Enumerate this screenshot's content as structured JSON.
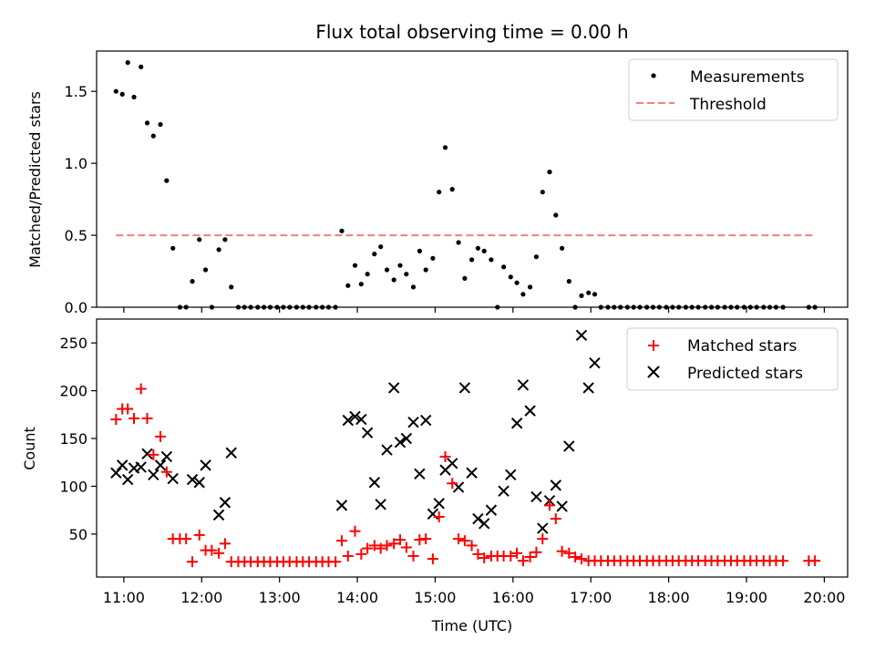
{
  "figure": {
    "title": "Flux total observing time = 0.00 h",
    "x_label": "Time (UTC)"
  },
  "chart_data": [
    {
      "type": "scatter",
      "ylabel": "Matched/Predicted stars",
      "ylim": [
        0,
        1.78
      ],
      "xlim": [
        10.65,
        20.3
      ],
      "yticks": [
        0.0,
        0.5,
        1.0,
        1.5
      ],
      "ytick_labels": [
        "0.0",
        "0.5",
        "1.0",
        "1.5"
      ],
      "legend_position": "top-right",
      "legend": [
        {
          "key": "measurements",
          "label": "Measurements"
        },
        {
          "key": "threshold",
          "label": "Threshold"
        }
      ],
      "threshold": {
        "value": 0.5,
        "x_start": 10.9,
        "x_end": 19.85,
        "color": "#f08080"
      },
      "series": [
        {
          "name": "Measurements",
          "color": "#000000",
          "x": [
            10.9,
            10.98,
            11.05,
            11.13,
            11.22,
            11.3,
            11.38,
            11.47,
            11.55,
            11.63,
            11.72,
            11.8,
            11.88,
            11.97,
            12.05,
            12.13,
            12.22,
            12.3,
            12.38,
            12.47,
            12.55,
            12.63,
            12.72,
            12.8,
            12.88,
            12.97,
            13.05,
            13.13,
            13.22,
            13.3,
            13.38,
            13.47,
            13.55,
            13.63,
            13.72,
            13.8,
            13.88,
            13.97,
            14.05,
            14.13,
            14.22,
            14.3,
            14.38,
            14.47,
            14.55,
            14.63,
            14.72,
            14.8,
            14.88,
            14.97,
            15.05,
            15.13,
            15.22,
            15.3,
            15.38,
            15.47,
            15.55,
            15.63,
            15.72,
            15.8,
            15.88,
            15.97,
            16.05,
            16.13,
            16.22,
            16.3,
            16.38,
            16.47,
            16.55,
            16.63,
            16.72,
            16.8,
            16.88,
            16.97,
            17.05,
            17.13,
            17.22,
            17.3,
            17.38,
            17.47,
            17.55,
            17.63,
            17.72,
            17.8,
            17.88,
            17.97,
            18.05,
            18.13,
            18.22,
            18.3,
            18.38,
            18.47,
            18.55,
            18.63,
            18.72,
            18.8,
            18.88,
            18.97,
            19.05,
            19.13,
            19.22,
            19.3,
            19.38,
            19.47,
            19.8,
            19.88
          ],
          "y": [
            1.5,
            1.48,
            1.7,
            1.46,
            1.67,
            1.28,
            1.19,
            1.27,
            0.88,
            0.41,
            0.0,
            0.0,
            0.18,
            0.47,
            0.26,
            0.0,
            0.4,
            0.47,
            0.14,
            0.0,
            0.0,
            0.0,
            0.0,
            0.0,
            0.0,
            0.0,
            0.0,
            0.0,
            0.0,
            0.0,
            0.0,
            0.0,
            0.0,
            0.0,
            0.0,
            0.53,
            0.15,
            0.29,
            0.16,
            0.23,
            0.37,
            0.42,
            0.26,
            0.19,
            0.29,
            0.23,
            0.14,
            0.39,
            0.26,
            0.34,
            0.8,
            1.11,
            0.82,
            0.45,
            0.2,
            0.33,
            0.41,
            0.39,
            0.33,
            0.0,
            0.28,
            0.21,
            0.17,
            0.09,
            0.14,
            0.35,
            0.8,
            0.94,
            0.64,
            0.41,
            0.18,
            0.0,
            0.08,
            0.1,
            0.09,
            0.0,
            0.0,
            0.0,
            0.0,
            0.0,
            0.0,
            0.0,
            0.0,
            0.0,
            0.0,
            0.0,
            0.0,
            0.0,
            0.0,
            0.0,
            0.0,
            0.0,
            0.0,
            0.0,
            0.0,
            0.0,
            0.0,
            0.0,
            0.0,
            0.0,
            0.0,
            0.0,
            0.0,
            0.0,
            0.0,
            0.0
          ]
        }
      ]
    },
    {
      "type": "scatter",
      "ylabel": "Count",
      "xlabel": "Time (UTC)",
      "ylim": [
        5,
        275
      ],
      "xlim": [
        10.65,
        20.3
      ],
      "yticks": [
        50,
        100,
        150,
        200,
        250
      ],
      "ytick_labels": [
        "50",
        "100",
        "150",
        "200",
        "250"
      ],
      "xticks": [
        11,
        12,
        13,
        14,
        15,
        16,
        17,
        18,
        19,
        20
      ],
      "xtick_labels": [
        "11:00",
        "12:00",
        "13:00",
        "14:00",
        "15:00",
        "16:00",
        "17:00",
        "18:00",
        "19:00",
        "20:00"
      ],
      "legend_position": "top-right",
      "legend": [
        {
          "key": "matched",
          "label": "Matched stars"
        },
        {
          "key": "predicted",
          "label": "Predicted stars"
        }
      ],
      "series": [
        {
          "name": "Matched stars",
          "marker": "plus",
          "color": "#ff0000",
          "x": [
            10.9,
            10.98,
            11.05,
            11.13,
            11.22,
            11.3,
            11.38,
            11.47,
            11.55,
            11.63,
            11.72,
            11.8,
            11.88,
            11.97,
            12.05,
            12.13,
            12.22,
            12.3,
            12.38,
            12.47,
            12.55,
            12.63,
            12.72,
            12.8,
            12.88,
            12.97,
            13.05,
            13.13,
            13.22,
            13.3,
            13.38,
            13.47,
            13.55,
            13.63,
            13.72,
            13.8,
            13.88,
            13.97,
            14.05,
            14.13,
            14.22,
            14.3,
            14.38,
            14.47,
            14.55,
            14.63,
            14.72,
            14.8,
            14.88,
            14.97,
            15.05,
            15.13,
            15.22,
            15.3,
            15.38,
            15.47,
            15.55,
            15.63,
            15.72,
            15.8,
            15.88,
            15.97,
            16.05,
            16.13,
            16.22,
            16.3,
            16.38,
            16.47,
            16.55,
            16.63,
            16.72,
            16.8,
            16.88,
            16.97,
            17.05,
            17.13,
            17.22,
            17.3,
            17.38,
            17.47,
            17.55,
            17.63,
            17.72,
            17.8,
            17.88,
            17.97,
            18.05,
            18.13,
            18.22,
            18.3,
            18.38,
            18.47,
            18.55,
            18.63,
            18.72,
            18.8,
            18.88,
            18.97,
            19.05,
            19.13,
            19.22,
            19.3,
            19.38,
            19.47,
            19.8,
            19.88
          ],
          "y": [
            170,
            181,
            181,
            171,
            202,
            171,
            133,
            152,
            115,
            45,
            45,
            45,
            21,
            49,
            33,
            33,
            30,
            40,
            21,
            21,
            21,
            21,
            21,
            21,
            21,
            21,
            21,
            21,
            21,
            21,
            21,
            21,
            21,
            21,
            21,
            43,
            27,
            53,
            29,
            35,
            38,
            35,
            38,
            40,
            44,
            36,
            27,
            44,
            45,
            24,
            68,
            131,
            103,
            45,
            43,
            38,
            29,
            25,
            27,
            27,
            27,
            27,
            30,
            22,
            26,
            31,
            45,
            80,
            66,
            32,
            30,
            26,
            24,
            22,
            22,
            22,
            22,
            22,
            22,
            22,
            22,
            22,
            22,
            22,
            22,
            22,
            22,
            22,
            22,
            22,
            22,
            22,
            22,
            22,
            22,
            22,
            22,
            22,
            22,
            22,
            22,
            22,
            22,
            22,
            22,
            22
          ]
        },
        {
          "name": "Predicted stars",
          "marker": "x",
          "color": "#000000",
          "x": [
            10.9,
            10.98,
            11.05,
            11.13,
            11.22,
            11.3,
            11.38,
            11.47,
            11.55,
            11.63,
            11.88,
            11.97,
            12.05,
            12.22,
            12.3,
            12.38,
            13.8,
            13.88,
            13.97,
            14.05,
            14.13,
            14.22,
            14.3,
            14.38,
            14.47,
            14.55,
            14.63,
            14.72,
            14.8,
            14.88,
            14.97,
            15.05,
            15.13,
            15.22,
            15.3,
            15.38,
            15.47,
            15.55,
            15.63,
            15.72,
            15.88,
            15.97,
            16.05,
            16.13,
            16.22,
            16.3,
            16.38,
            16.47,
            16.55,
            16.63,
            16.72,
            16.88,
            16.97,
            17.05
          ],
          "y": [
            114,
            122,
            107,
            119,
            120,
            134,
            112,
            122,
            131,
            108,
            107,
            104,
            122,
            70,
            83,
            135,
            80,
            169,
            173,
            170,
            156,
            104,
            81,
            138,
            203,
            146,
            150,
            167,
            113,
            169,
            71,
            82,
            117,
            124,
            99,
            203,
            114,
            66,
            61,
            75,
            95,
            112,
            166,
            206,
            179,
            89,
            56,
            85,
            101,
            79,
            142,
            258,
            203,
            229
          ]
        }
      ]
    }
  ]
}
